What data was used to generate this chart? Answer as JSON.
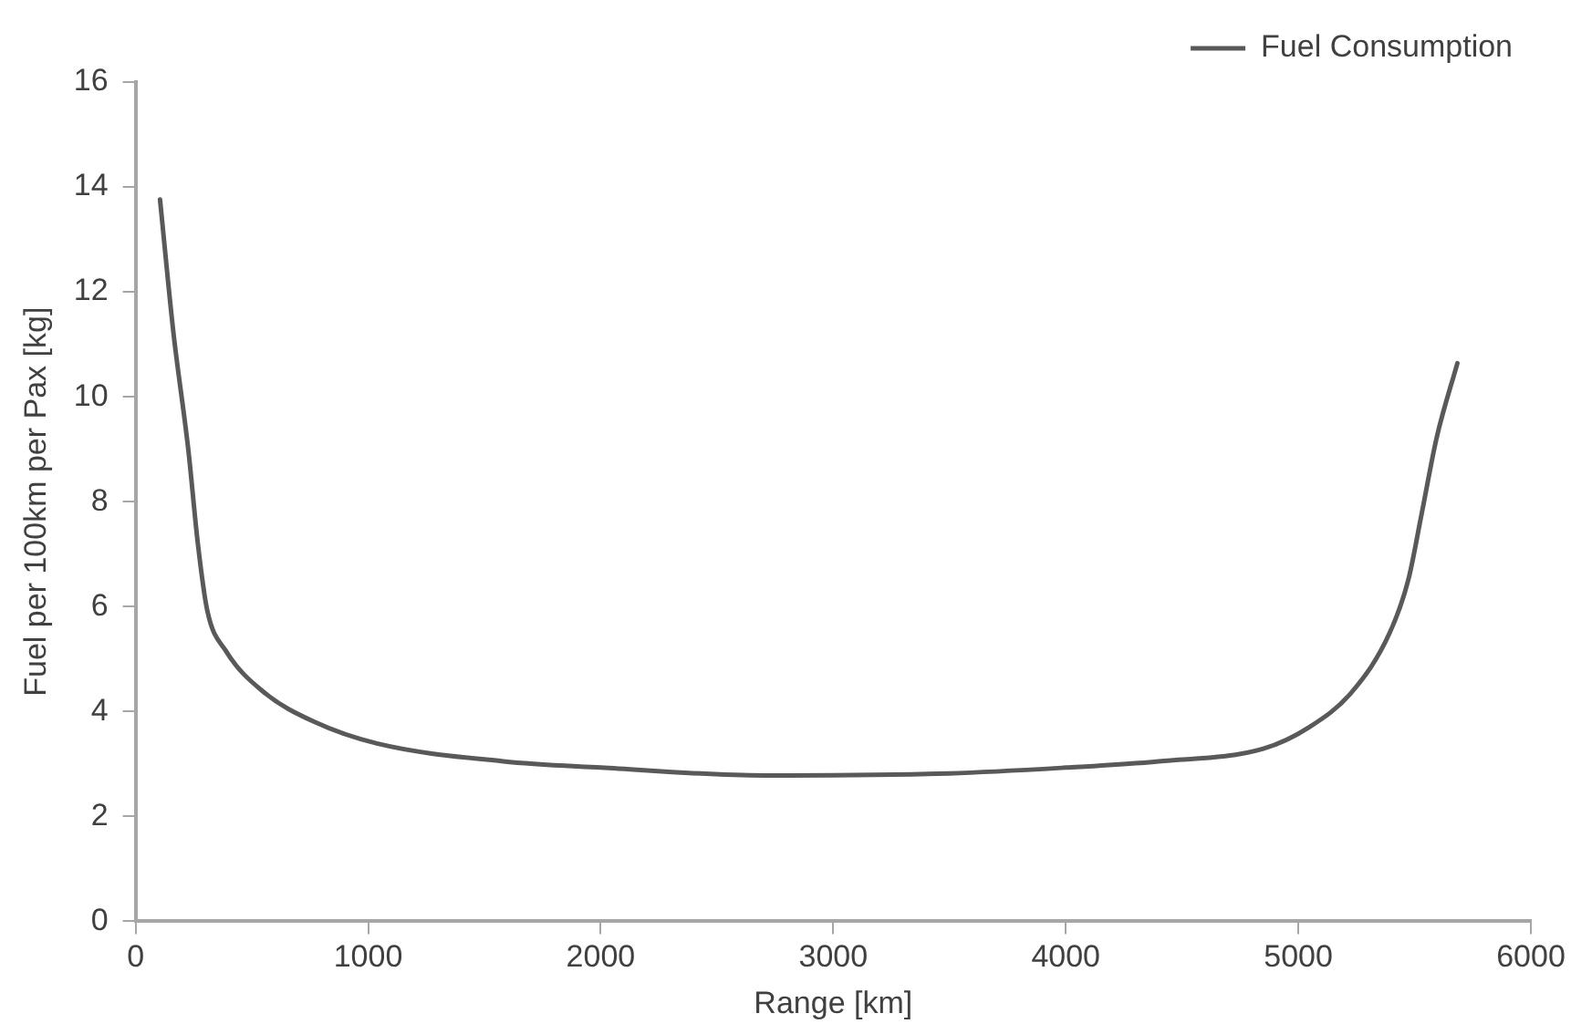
{
  "chart_data": {
    "type": "line",
    "xlabel": "Range [km]",
    "ylabel": "Fuel per 100km per Pax [kg]",
    "xlim": [
      0,
      6000
    ],
    "xticks": [
      0,
      1000,
      2000,
      3000,
      4000,
      5000,
      6000
    ],
    "ylim": [
      0,
      16
    ],
    "yticks": [
      0,
      2,
      4,
      6,
      8,
      10,
      12,
      14,
      16
    ],
    "grid": false,
    "legend": "top right",
    "marker": "none",
    "line_style": "solid",
    "series": [
      {
        "name": "Fuel Consumption",
        "color": "#595959",
        "x": [
          105,
          162,
          227,
          268,
          308,
          389,
          551,
          770,
          1038,
          1581,
          2000,
          2700,
          3500,
          4000,
          4400,
          4849,
          5043,
          5230,
          5392,
          5473,
          5530,
          5595,
          5684
        ],
        "values": [
          13.76,
          11.25,
          8.98,
          7.19,
          5.93,
          5.15,
          4.37,
          3.8,
          3.39,
          3.05,
          2.93,
          2.78,
          2.82,
          2.93,
          3.05,
          3.29,
          3.69,
          4.37,
          5.49,
          6.51,
          7.76,
          9.22,
          10.64
        ]
      }
    ]
  }
}
